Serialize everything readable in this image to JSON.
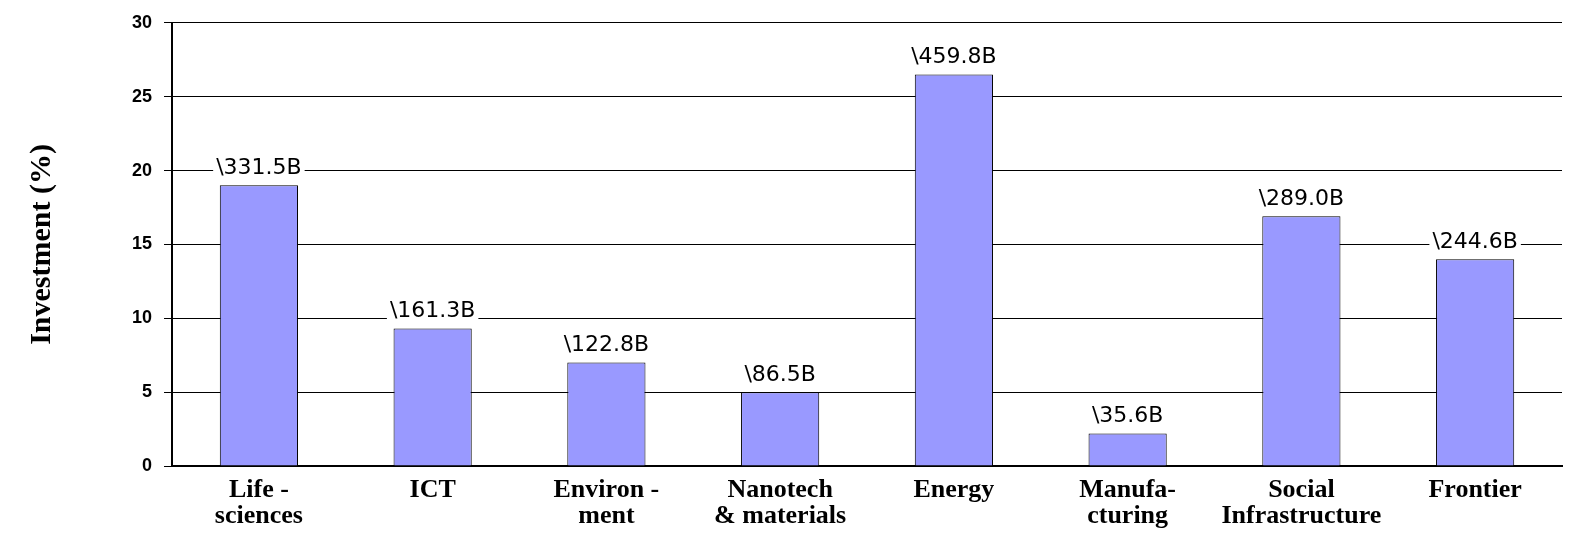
{
  "chart_data": {
    "type": "bar",
    "ylabel": "Investment (%)",
    "categories": [
      "Life -\nsciences",
      "ICT",
      "Environ -\nment",
      "Nanotech\n& materials",
      "Energy",
      "Manufa-\ncturing",
      "Social\nInfrastructure",
      "Frontier"
    ],
    "values": [
      19.0,
      9.3,
      7.0,
      5.0,
      26.5,
      2.2,
      16.9,
      14.0
    ],
    "annotations": [
      {
        "text": "\\331.5B",
        "x": "Life -\nsciences",
        "y": 19.0
      },
      {
        "text": "\\161.3B",
        "x": "ICT",
        "y": 9.3
      },
      {
        "text": "\\122.8B",
        "x": "Environ -\nment",
        "y": 7.0
      },
      {
        "text": "\\86.5B",
        "x": "Nanotech\n& materials",
        "y": 5.0
      },
      {
        "text": "\\459.8B",
        "x": "Energy",
        "y": 26.5
      },
      {
        "text": "\\35.6B",
        "x": "Manufa-\ncturing",
        "y": 2.2
      },
      {
        "text": "\\289.0B",
        "x": "Social\nInfrastructure",
        "y": 16.9
      },
      {
        "text": "\\244.6B",
        "x": "Frontier",
        "y": 14.0
      }
    ],
    "color": "#9999ff",
    "ylim": [
      0,
      30
    ],
    "yticks": [
      0,
      5,
      10,
      15,
      20,
      25,
      30
    ],
    "grid": "y",
    "legend": false
  }
}
